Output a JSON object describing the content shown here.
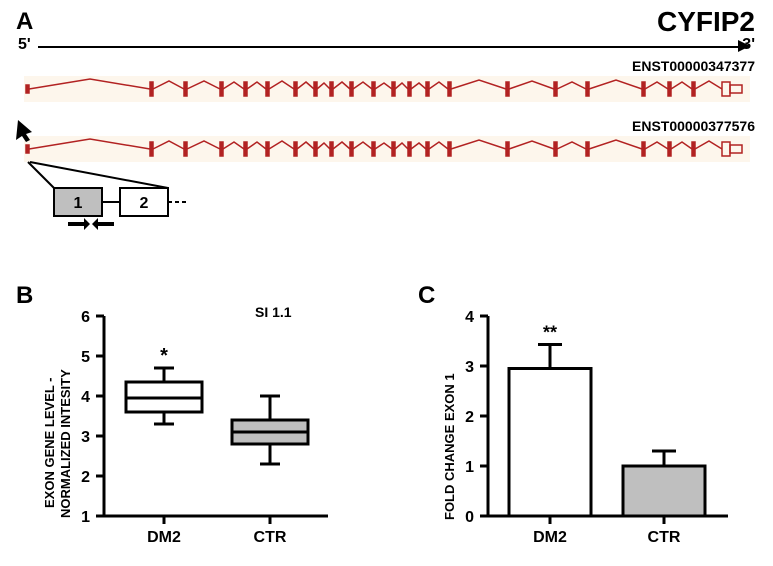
{
  "panelA": {
    "label": "A",
    "gene": "CYFIP2",
    "five_prime": "5'",
    "three_prime": "3'",
    "transcript1": "ENST00000347377",
    "transcript2": "ENST00000377576",
    "track_bg_color": "#fdf6ec",
    "transcript_color": "#b22222",
    "inset": {
      "exon1_label": "1",
      "exon2_label": "2",
      "exon1_fill": "#bfbfbf",
      "exon2_fill": "#ffffff"
    }
  },
  "panelB": {
    "label": "B",
    "y_label_line1": "EXON GENE LEVEL -",
    "y_label_line2": "NORMALIZED INTESITY",
    "si_label": "SI 1.1",
    "significance": "*",
    "y_ticks": [
      1,
      2,
      3,
      4,
      5,
      6
    ],
    "ylim": [
      1,
      6
    ],
    "categories": [
      "DM2",
      "CTR"
    ],
    "boxes": {
      "DM2": {
        "q1": 3.6,
        "median": 3.95,
        "q3": 4.35,
        "whisker_low": 3.3,
        "whisker_high": 4.7,
        "fill": "#ffffff"
      },
      "CTR": {
        "q1": 2.8,
        "median": 3.1,
        "q3": 3.4,
        "whisker_low": 2.3,
        "whisker_high": 4.0,
        "fill": "#bfbfbf"
      }
    },
    "axis_color": "#000000"
  },
  "panelC": {
    "label": "C",
    "y_label": "FOLD CHANGE EXON 1",
    "significance": "**",
    "y_ticks": [
      0,
      1,
      2,
      3,
      4
    ],
    "ylim": [
      0,
      4
    ],
    "categories": [
      "DM2",
      "CTR"
    ],
    "bars": {
      "DM2": {
        "value": 2.95,
        "error": 0.48,
        "fill": "#ffffff"
      },
      "CTR": {
        "value": 1.0,
        "error": 0.3,
        "fill": "#bfbfbf"
      }
    },
    "axis_color": "#000000"
  }
}
